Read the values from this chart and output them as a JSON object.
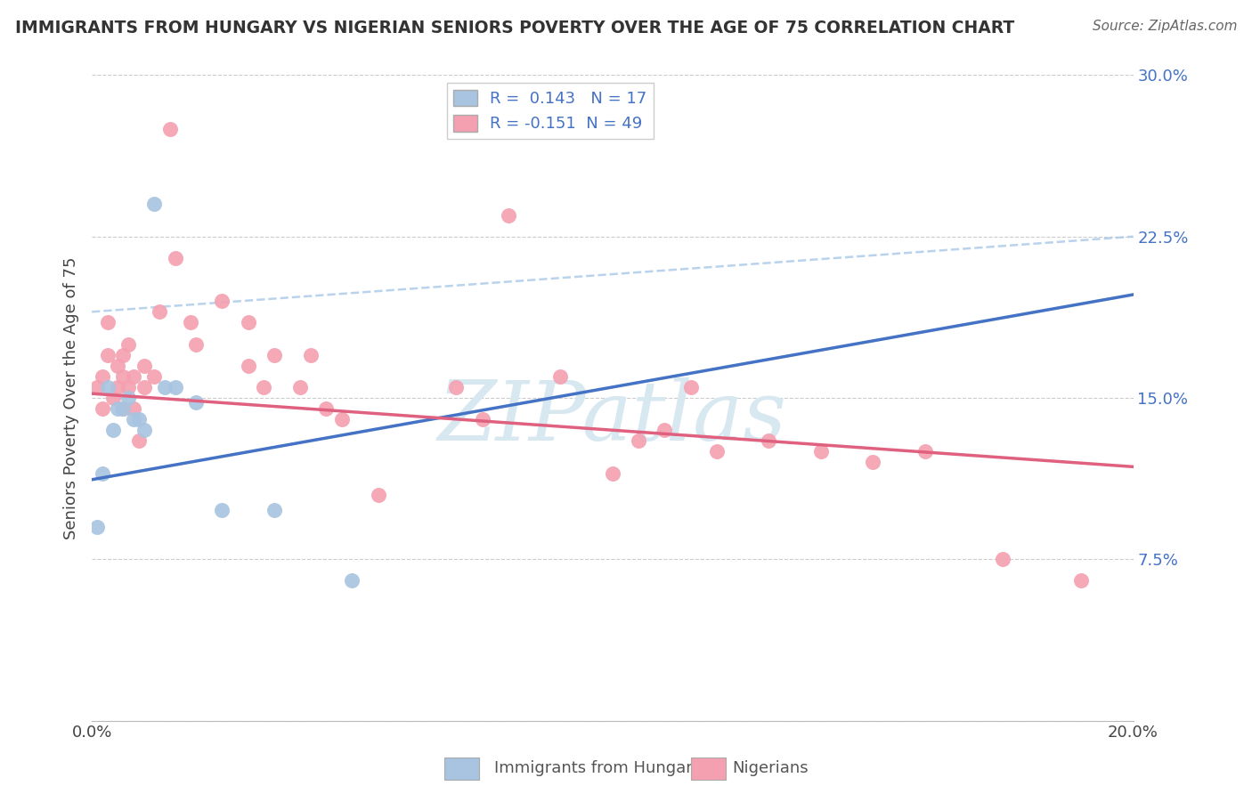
{
  "title": "IMMIGRANTS FROM HUNGARY VS NIGERIAN SENIORS POVERTY OVER THE AGE OF 75 CORRELATION CHART",
  "source": "Source: ZipAtlas.com",
  "ylabel": "Seniors Poverty Over the Age of 75",
  "x_min": 0.0,
  "x_max": 0.2,
  "y_min": 0.0,
  "y_max": 0.3,
  "y_ticks": [
    0.0,
    0.075,
    0.15,
    0.225,
    0.3
  ],
  "y_tick_labels": [
    "",
    "7.5%",
    "15.0%",
    "22.5%",
    "30.0%"
  ],
  "x_ticks": [
    0.0,
    0.04,
    0.08,
    0.12,
    0.16,
    0.2
  ],
  "x_tick_labels": [
    "0.0%",
    "",
    "",
    "",
    "",
    "20.0%"
  ],
  "hungary_R": 0.143,
  "hungary_N": 17,
  "nigeria_R": -0.151,
  "nigeria_N": 49,
  "hungary_color": "#a8c4e0",
  "nigeria_color": "#f4a0b0",
  "hungary_line_color": "#4472c4",
  "nigeria_line_color": "#e06080",
  "dashed_line_color": "#a8c8e8",
  "watermark_color": "#d8e8f0",
  "hungary_line_y0": 0.112,
  "hungary_line_y1": 0.198,
  "nigeria_line_y0": 0.152,
  "nigeria_line_y1": 0.118,
  "dashed_line_y0": 0.19,
  "dashed_line_y1": 0.225,
  "hungary_x": [
    0.001,
    0.002,
    0.003,
    0.004,
    0.005,
    0.006,
    0.007,
    0.008,
    0.009,
    0.01,
    0.012,
    0.014,
    0.016,
    0.02,
    0.025,
    0.035,
    0.05
  ],
  "hungary_y": [
    0.09,
    0.115,
    0.155,
    0.135,
    0.145,
    0.145,
    0.15,
    0.14,
    0.14,
    0.135,
    0.24,
    0.155,
    0.155,
    0.148,
    0.098,
    0.098,
    0.065
  ],
  "nigeria_x": [
    0.001,
    0.002,
    0.002,
    0.003,
    0.003,
    0.004,
    0.005,
    0.005,
    0.006,
    0.006,
    0.006,
    0.007,
    0.007,
    0.008,
    0.008,
    0.009,
    0.01,
    0.01,
    0.012,
    0.013,
    0.015,
    0.016,
    0.019,
    0.02,
    0.025,
    0.03,
    0.03,
    0.033,
    0.035,
    0.04,
    0.042,
    0.045,
    0.048,
    0.055,
    0.07,
    0.075,
    0.08,
    0.09,
    0.1,
    0.105,
    0.11,
    0.115,
    0.12,
    0.13,
    0.14,
    0.15,
    0.16,
    0.175,
    0.19
  ],
  "nigeria_y": [
    0.155,
    0.145,
    0.16,
    0.17,
    0.185,
    0.15,
    0.155,
    0.165,
    0.145,
    0.16,
    0.17,
    0.155,
    0.175,
    0.145,
    0.16,
    0.13,
    0.155,
    0.165,
    0.16,
    0.19,
    0.275,
    0.215,
    0.185,
    0.175,
    0.195,
    0.165,
    0.185,
    0.155,
    0.17,
    0.155,
    0.17,
    0.145,
    0.14,
    0.105,
    0.155,
    0.14,
    0.235,
    0.16,
    0.115,
    0.13,
    0.135,
    0.155,
    0.125,
    0.13,
    0.125,
    0.12,
    0.125,
    0.075,
    0.065
  ]
}
